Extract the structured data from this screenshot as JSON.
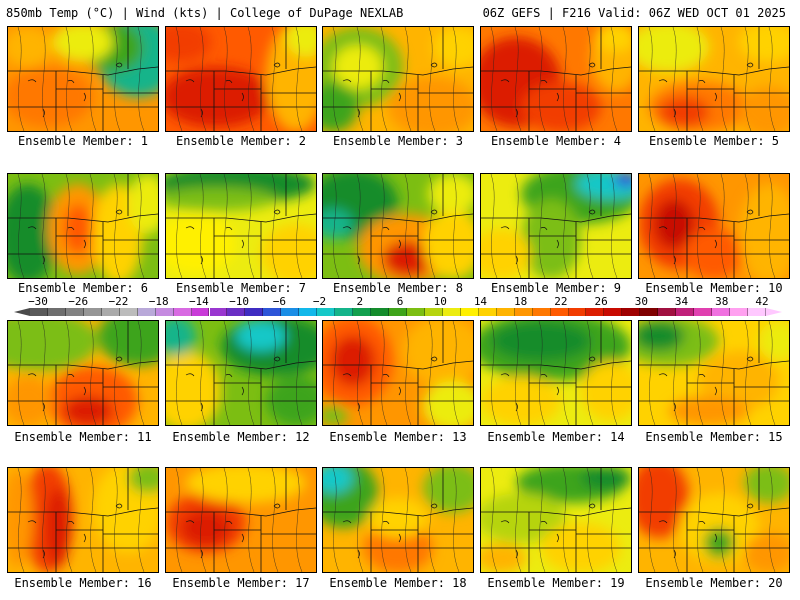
{
  "header": {
    "left": "850mb Temp (°C) | Wind (kts) | College of DuPage NEXLAB",
    "right": "06Z GEFS | F216 Valid: 06Z WED OCT 01 2025"
  },
  "colorbar": {
    "labels": [
      "−30",
      "−26",
      "−22",
      "−18",
      "−14",
      "−10",
      "−6",
      "−2",
      "2",
      "6",
      "10",
      "14",
      "18",
      "22",
      "26",
      "30",
      "34",
      "38",
      "42"
    ],
    "colors": [
      "#5a5a5a",
      "#6e6e6e",
      "#828282",
      "#969696",
      "#aaaaaa",
      "#bcbcbc",
      "#b9a9d9",
      "#c58ae0",
      "#d86ae2",
      "#c93bd8",
      "#9a37d0",
      "#6a2fc4",
      "#3f2cc2",
      "#2d55d8",
      "#1a8ee6",
      "#12b8ea",
      "#15c8c8",
      "#14b48a",
      "#12a04e",
      "#148c2c",
      "#3ea41a",
      "#7cbe12",
      "#b6d40e",
      "#ecec10",
      "#fff000",
      "#ffd200",
      "#ffb400",
      "#ff9600",
      "#ff7800",
      "#ff5a00",
      "#f23c00",
      "#dc1e00",
      "#c80a00",
      "#a00000",
      "#800000",
      "#a01040",
      "#c0207a",
      "#e040b0",
      "#f070e0",
      "#ffa0f0",
      "#ffc8ff"
    ]
  },
  "panels": [
    {
      "caption": "Ensemble Member: 1",
      "base": "#ff9600",
      "blobs": [
        {
          "cx": 40,
          "cy": 70,
          "rx": 45,
          "ry": 30,
          "c": "#ff7800"
        },
        {
          "cx": 130,
          "cy": 30,
          "rx": 40,
          "ry": 40,
          "c": "#14b48a"
        },
        {
          "cx": 105,
          "cy": 20,
          "rx": 30,
          "ry": 25,
          "c": "#3ea41a"
        },
        {
          "cx": 75,
          "cy": 15,
          "rx": 30,
          "ry": 20,
          "c": "#ecec10"
        },
        {
          "cx": 20,
          "cy": 20,
          "rx": 25,
          "ry": 20,
          "c": "#ffb400"
        }
      ]
    },
    {
      "caption": "Ensemble Member: 2",
      "base": "#ff5a00",
      "blobs": [
        {
          "cx": 50,
          "cy": 70,
          "rx": 55,
          "ry": 30,
          "c": "#dc1e00"
        },
        {
          "cx": 130,
          "cy": 50,
          "rx": 30,
          "ry": 55,
          "c": "#ffb400"
        },
        {
          "cx": 140,
          "cy": 10,
          "rx": 20,
          "ry": 20,
          "c": "#ecec10"
        },
        {
          "cx": 15,
          "cy": 15,
          "rx": 30,
          "ry": 20,
          "c": "#f23c00"
        }
      ]
    },
    {
      "caption": "Ensemble Member: 3",
      "base": "#ffb400",
      "blobs": [
        {
          "cx": 35,
          "cy": 40,
          "rx": 45,
          "ry": 40,
          "c": "#7cbe12"
        },
        {
          "cx": 35,
          "cy": 40,
          "rx": 25,
          "ry": 22,
          "c": "#ecec10"
        },
        {
          "cx": 10,
          "cy": 80,
          "rx": 25,
          "ry": 25,
          "c": "#3ea41a"
        },
        {
          "cx": 110,
          "cy": 80,
          "rx": 45,
          "ry": 30,
          "c": "#ff9600"
        },
        {
          "cx": 135,
          "cy": 20,
          "rx": 25,
          "ry": 20,
          "c": "#ffd200"
        }
      ]
    },
    {
      "caption": "Ensemble Member: 4",
      "base": "#ff7800",
      "blobs": [
        {
          "cx": 35,
          "cy": 55,
          "rx": 45,
          "ry": 45,
          "c": "#dc1e00"
        },
        {
          "cx": 80,
          "cy": 80,
          "rx": 40,
          "ry": 25,
          "c": "#f23c00"
        },
        {
          "cx": 135,
          "cy": 30,
          "rx": 25,
          "ry": 35,
          "c": "#ffb400"
        },
        {
          "cx": 135,
          "cy": 10,
          "rx": 20,
          "ry": 15,
          "c": "#ffd200"
        }
      ]
    },
    {
      "caption": "Ensemble Member: 5",
      "base": "#ffb400",
      "blobs": [
        {
          "cx": 30,
          "cy": 20,
          "rx": 40,
          "ry": 25,
          "c": "#ecec10"
        },
        {
          "cx": 60,
          "cy": 80,
          "rx": 50,
          "ry": 25,
          "c": "#ff7800"
        },
        {
          "cx": 45,
          "cy": 85,
          "rx": 25,
          "ry": 15,
          "c": "#f23c00"
        },
        {
          "cx": 130,
          "cy": 15,
          "rx": 30,
          "ry": 20,
          "c": "#ffd200"
        },
        {
          "cx": 130,
          "cy": 85,
          "rx": 30,
          "ry": 25,
          "c": "#ff9600"
        }
      ]
    },
    {
      "caption": "Ensemble Member: 6",
      "base": "#7cbe12",
      "blobs": [
        {
          "cx": 20,
          "cy": 60,
          "rx": 30,
          "ry": 50,
          "c": "#148c2c"
        },
        {
          "cx": 70,
          "cy": 55,
          "rx": 30,
          "ry": 45,
          "c": "#ff9600"
        },
        {
          "cx": 70,
          "cy": 55,
          "rx": 15,
          "ry": 25,
          "c": "#ff5a00"
        },
        {
          "cx": 110,
          "cy": 60,
          "rx": 25,
          "ry": 50,
          "c": "#ffd200"
        },
        {
          "cx": 140,
          "cy": 30,
          "rx": 20,
          "ry": 30,
          "c": "#ecec10"
        }
      ]
    },
    {
      "caption": "Ensemble Member: 7",
      "base": "#ecec10",
      "blobs": [
        {
          "cx": 70,
          "cy": 10,
          "rx": 80,
          "ry": 20,
          "c": "#148c2c"
        },
        {
          "cx": 50,
          "cy": 25,
          "rx": 60,
          "ry": 12,
          "c": "#7cbe12"
        },
        {
          "cx": 30,
          "cy": 70,
          "rx": 40,
          "ry": 30,
          "c": "#fff000"
        },
        {
          "cx": 130,
          "cy": 80,
          "rx": 35,
          "ry": 30,
          "c": "#ffd200"
        }
      ]
    },
    {
      "caption": "Ensemble Member: 8",
      "base": "#7cbe12",
      "blobs": [
        {
          "cx": 30,
          "cy": 30,
          "rx": 45,
          "ry": 35,
          "c": "#148c2c"
        },
        {
          "cx": 10,
          "cy": 50,
          "rx": 20,
          "ry": 15,
          "c": "#14b48a"
        },
        {
          "cx": 85,
          "cy": 75,
          "rx": 50,
          "ry": 35,
          "c": "#ff9600"
        },
        {
          "cx": 85,
          "cy": 85,
          "rx": 25,
          "ry": 18,
          "c": "#dc1e00"
        },
        {
          "cx": 130,
          "cy": 70,
          "rx": 30,
          "ry": 35,
          "c": "#ffd200"
        },
        {
          "cx": 130,
          "cy": 20,
          "rx": 25,
          "ry": 20,
          "c": "#ecec10"
        }
      ]
    },
    {
      "caption": "Ensemble Member: 9",
      "base": "#ecec10",
      "blobs": [
        {
          "cx": 100,
          "cy": 20,
          "rx": 60,
          "ry": 30,
          "c": "#3ea41a"
        },
        {
          "cx": 130,
          "cy": 10,
          "rx": 35,
          "ry": 15,
          "c": "#15c8c8"
        },
        {
          "cx": 145,
          "cy": 5,
          "rx": 12,
          "ry": 8,
          "c": "#2d55d8"
        },
        {
          "cx": 70,
          "cy": 65,
          "rx": 30,
          "ry": 40,
          "c": "#7cbe12"
        },
        {
          "cx": 20,
          "cy": 80,
          "rx": 30,
          "ry": 25,
          "c": "#ffd200"
        }
      ]
    },
    {
      "caption": "Ensemble Member: 10",
      "base": "#ff9600",
      "blobs": [
        {
          "cx": 40,
          "cy": 50,
          "rx": 40,
          "ry": 45,
          "c": "#f23c00"
        },
        {
          "cx": 35,
          "cy": 50,
          "rx": 20,
          "ry": 25,
          "c": "#c80a00"
        },
        {
          "cx": 75,
          "cy": 80,
          "rx": 30,
          "ry": 25,
          "c": "#ff5a00"
        },
        {
          "cx": 130,
          "cy": 60,
          "rx": 30,
          "ry": 50,
          "c": "#ffb400"
        }
      ]
    },
    {
      "caption": "Ensemble Member: 11",
      "base": "#ffb400",
      "blobs": [
        {
          "cx": 30,
          "cy": 20,
          "rx": 60,
          "ry": 30,
          "c": "#7cbe12"
        },
        {
          "cx": 130,
          "cy": 15,
          "rx": 40,
          "ry": 30,
          "c": "#3ea41a"
        },
        {
          "cx": 85,
          "cy": 80,
          "rx": 45,
          "ry": 35,
          "c": "#ff5a00"
        },
        {
          "cx": 80,
          "cy": 90,
          "rx": 25,
          "ry": 15,
          "c": "#dc1e00"
        },
        {
          "cx": 20,
          "cy": 80,
          "rx": 25,
          "ry": 25,
          "c": "#ff9600"
        }
      ]
    },
    {
      "caption": "Ensemble Member: 12",
      "base": "#7cbe12",
      "blobs": [
        {
          "cx": 110,
          "cy": 25,
          "rx": 55,
          "ry": 30,
          "c": "#148c2c"
        },
        {
          "cx": 95,
          "cy": 15,
          "rx": 25,
          "ry": 15,
          "c": "#15c8c8"
        },
        {
          "cx": 20,
          "cy": 70,
          "rx": 35,
          "ry": 40,
          "c": "#ffd200"
        },
        {
          "cx": 10,
          "cy": 15,
          "rx": 20,
          "ry": 20,
          "c": "#14b48a"
        },
        {
          "cx": 130,
          "cy": 80,
          "rx": 30,
          "ry": 25,
          "c": "#3ea41a"
        }
      ]
    },
    {
      "caption": "Ensemble Member: 13",
      "base": "#ff9600",
      "blobs": [
        {
          "cx": 30,
          "cy": 40,
          "rx": 40,
          "ry": 45,
          "c": "#ff5a00"
        },
        {
          "cx": 30,
          "cy": 40,
          "rx": 22,
          "ry": 25,
          "c": "#dc1e00"
        },
        {
          "cx": 120,
          "cy": 30,
          "rx": 40,
          "ry": 35,
          "c": "#ffb400"
        },
        {
          "cx": 130,
          "cy": 85,
          "rx": 30,
          "ry": 25,
          "c": "#ecec10"
        },
        {
          "cx": 10,
          "cy": 95,
          "rx": 15,
          "ry": 10,
          "c": "#7cbe12"
        }
      ]
    },
    {
      "caption": "Ensemble Member: 14",
      "base": "#ecec10",
      "blobs": [
        {
          "cx": 70,
          "cy": 25,
          "rx": 80,
          "ry": 35,
          "c": "#3ea41a"
        },
        {
          "cx": 60,
          "cy": 20,
          "rx": 50,
          "ry": 20,
          "c": "#148c2c"
        },
        {
          "cx": 40,
          "cy": 80,
          "rx": 40,
          "ry": 25,
          "c": "#ffd200"
        },
        {
          "cx": 130,
          "cy": 70,
          "rx": 30,
          "ry": 30,
          "c": "#ffd200"
        }
      ]
    },
    {
      "caption": "Ensemble Member: 15",
      "base": "#ffd200",
      "blobs": [
        {
          "cx": 30,
          "cy": 20,
          "rx": 50,
          "ry": 25,
          "c": "#7cbe12"
        },
        {
          "cx": 20,
          "cy": 15,
          "rx": 25,
          "ry": 15,
          "c": "#148c2c"
        },
        {
          "cx": 100,
          "cy": 60,
          "rx": 40,
          "ry": 30,
          "c": "#ffb400"
        },
        {
          "cx": 70,
          "cy": 90,
          "rx": 40,
          "ry": 15,
          "c": "#ff9600"
        },
        {
          "cx": 140,
          "cy": 20,
          "rx": 20,
          "ry": 20,
          "c": "#ecec10"
        }
      ]
    },
    {
      "caption": "Ensemble Member: 16",
      "base": "#ffb400",
      "blobs": [
        {
          "cx": 40,
          "cy": 50,
          "rx": 25,
          "ry": 55,
          "c": "#f23c00"
        },
        {
          "cx": 50,
          "cy": 60,
          "rx": 12,
          "ry": 40,
          "c": "#dc1e00"
        },
        {
          "cx": 10,
          "cy": 50,
          "rx": 15,
          "ry": 50,
          "c": "#ff9600"
        },
        {
          "cx": 120,
          "cy": 40,
          "rx": 35,
          "ry": 45,
          "c": "#ffd200"
        },
        {
          "cx": 140,
          "cy": 10,
          "rx": 20,
          "ry": 15,
          "c": "#7cbe12"
        }
      ]
    },
    {
      "caption": "Ensemble Member: 17",
      "base": "#ff9600",
      "blobs": [
        {
          "cx": 40,
          "cy": 55,
          "rx": 40,
          "ry": 30,
          "c": "#f23c00"
        },
        {
          "cx": 40,
          "cy": 60,
          "rx": 25,
          "ry": 18,
          "c": "#dc1e00"
        },
        {
          "cx": 80,
          "cy": 15,
          "rx": 60,
          "ry": 20,
          "c": "#ffd200"
        },
        {
          "cx": 130,
          "cy": 70,
          "rx": 30,
          "ry": 35,
          "c": "#ff9600"
        }
      ]
    },
    {
      "caption": "Ensemble Member: 18",
      "base": "#ffb400",
      "blobs": [
        {
          "cx": 20,
          "cy": 25,
          "rx": 35,
          "ry": 35,
          "c": "#3ea41a"
        },
        {
          "cx": 10,
          "cy": 10,
          "rx": 20,
          "ry": 15,
          "c": "#15c8c8"
        },
        {
          "cx": 130,
          "cy": 20,
          "rx": 30,
          "ry": 25,
          "c": "#7cbe12"
        },
        {
          "cx": 75,
          "cy": 80,
          "rx": 35,
          "ry": 25,
          "c": "#ff7800"
        },
        {
          "cx": 75,
          "cy": 50,
          "rx": 30,
          "ry": 20,
          "c": "#ffd200"
        }
      ]
    },
    {
      "caption": "Ensemble Member: 19",
      "base": "#ecec10",
      "blobs": [
        {
          "cx": 90,
          "cy": 15,
          "rx": 55,
          "ry": 20,
          "c": "#3ea41a"
        },
        {
          "cx": 125,
          "cy": 10,
          "rx": 25,
          "ry": 12,
          "c": "#148c2c"
        },
        {
          "cx": 40,
          "cy": 50,
          "rx": 45,
          "ry": 25,
          "c": "#b6d40e"
        },
        {
          "cx": 100,
          "cy": 80,
          "rx": 40,
          "ry": 25,
          "c": "#ffd200"
        },
        {
          "cx": 20,
          "cy": 90,
          "rx": 25,
          "ry": 15,
          "c": "#ffb400"
        }
      ]
    },
    {
      "caption": "Ensemble Member: 20",
      "base": "#ffb400",
      "blobs": [
        {
          "cx": 20,
          "cy": 30,
          "rx": 30,
          "ry": 40,
          "c": "#f23c00"
        },
        {
          "cx": 80,
          "cy": 60,
          "rx": 40,
          "ry": 35,
          "c": "#ffd200"
        },
        {
          "cx": 80,
          "cy": 75,
          "rx": 15,
          "ry": 15,
          "c": "#3ea41a"
        },
        {
          "cx": 130,
          "cy": 15,
          "rx": 25,
          "ry": 20,
          "c": "#7cbe12"
        },
        {
          "cx": 130,
          "cy": 85,
          "rx": 25,
          "ry": 20,
          "c": "#ff9600"
        }
      ]
    }
  ]
}
